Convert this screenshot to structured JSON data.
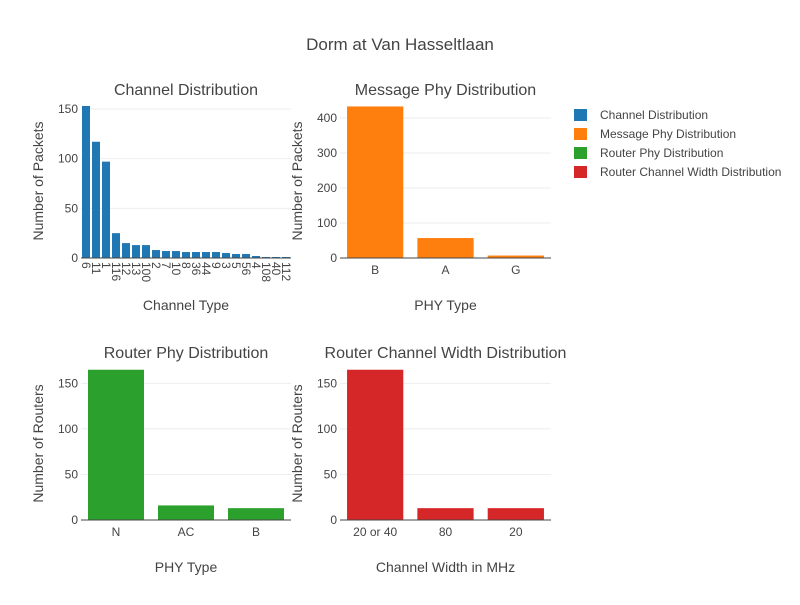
{
  "page": {
    "title": "Dorm at Van Hasseltlaan"
  },
  "legend": [
    {
      "label": "Channel Distribution",
      "color": "#1f77b4"
    },
    {
      "label": "Message Phy Distribution",
      "color": "#ff7f0e"
    },
    {
      "label": "Router Phy Distribution",
      "color": "#2ca02c"
    },
    {
      "label": "Router Channel Width Distribution",
      "color": "#d62728"
    }
  ],
  "chart_data": [
    {
      "type": "bar",
      "title": "Channel Distribution",
      "xlabel": "Channel Type",
      "ylabel": "Number of Packets",
      "color": "#1f77b4",
      "ylim": [
        0,
        155
      ],
      "yticks": [
        0,
        50,
        100,
        150
      ],
      "categories": [
        "6",
        "11",
        "1",
        "116",
        "12",
        "13",
        "100",
        "2",
        "7",
        "10",
        "8",
        "36",
        "44",
        "9",
        "3",
        "5",
        "56",
        "4",
        "108",
        "40",
        "112"
      ],
      "values": [
        153,
        117,
        97,
        25,
        15,
        13,
        13,
        8,
        7,
        7,
        6,
        6,
        6,
        6,
        5,
        4,
        4,
        2,
        1,
        1,
        1
      ],
      "tick_rotation": 90
    },
    {
      "type": "bar",
      "title": "Message Phy Distribution",
      "xlabel": "PHY Type",
      "ylabel": "Number of Packets",
      "color": "#ff7f0e",
      "ylim": [
        0,
        440
      ],
      "yticks": [
        0,
        100,
        200,
        300,
        400
      ],
      "categories": [
        "B",
        "A",
        "G"
      ],
      "values": [
        433,
        57,
        7
      ]
    },
    {
      "type": "bar",
      "title": "Router Phy Distribution",
      "xlabel": "PHY Type",
      "ylabel": "Number of Routers",
      "color": "#2ca02c",
      "ylim": [
        0,
        168
      ],
      "yticks": [
        0,
        50,
        100,
        150
      ],
      "categories": [
        "N",
        "AC",
        "B"
      ],
      "values": [
        165,
        16,
        13
      ]
    },
    {
      "type": "bar",
      "title": "Router Channel Width Distribution",
      "xlabel": "Channel Width in MHz",
      "ylabel": "Number of Routers",
      "color": "#d62728",
      "ylim": [
        0,
        168
      ],
      "yticks": [
        0,
        50,
        100,
        150
      ],
      "categories": [
        "20 or 40",
        "80",
        "20"
      ],
      "values": [
        165,
        13,
        13
      ]
    }
  ]
}
